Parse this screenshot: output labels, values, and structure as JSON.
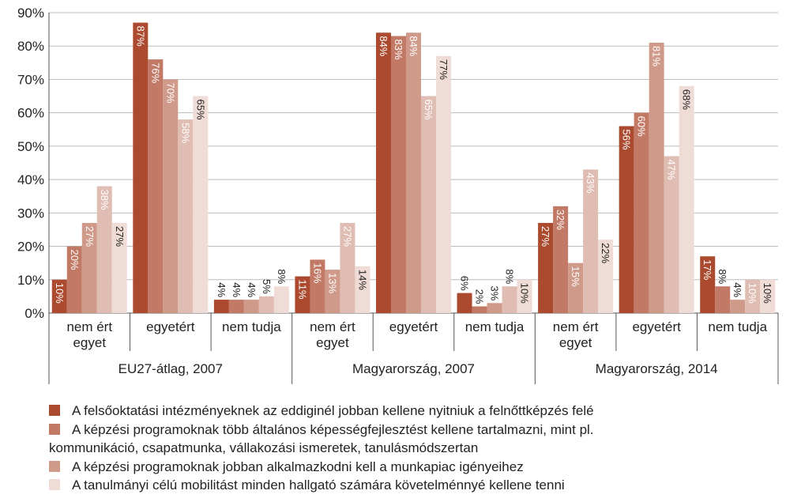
{
  "chart_data": {
    "type": "bar",
    "groups": [
      "EU27-átlag, 2007",
      "Magyarország, 2007",
      "Magyarország, 2014"
    ],
    "categories": [
      "nem ért egyet",
      "egyetért",
      "nem tudja",
      "nem ért egyet",
      "egyetért",
      "nem tudja",
      "nem ért egyet",
      "egyetért",
      "nem tudja"
    ],
    "series": [
      {
        "name": "A felsőoktatási intézményeknek az eddiginél jobban kellene nyitniuk a felnőttképzés felé",
        "color": "#ab4a2e",
        "values": [
          10,
          87,
          4,
          11,
          84,
          6,
          27,
          56,
          17
        ],
        "value_labels": [
          "10%",
          "87%",
          "4%",
          "11%",
          "84%",
          "6%",
          "27%",
          "56%",
          "17%"
        ]
      },
      {
        "name": "A képzési programoknak több általános képességfejlesztést kellene tartalmazni, mint pl. kommunikáció, csapatmunka, vállakozási ismeretek, tanulásmódszertan",
        "color": "#c27a66",
        "values": [
          20,
          76,
          4,
          16,
          83,
          2,
          32,
          60,
          8
        ],
        "value_labels": [
          "20%",
          "76%",
          "4%",
          "16%",
          "83%",
          "2%",
          "32%",
          "60%",
          "8%"
        ]
      },
      {
        "name": "A képzési programoknak jobban alkalmazkodni kell a munkapiac igényeihez",
        "color": "#d09a8b",
        "values": [
          27,
          70,
          4,
          13,
          84,
          3,
          15,
          81,
          4
        ],
        "value_labels": [
          "27%",
          "70%",
          "4%",
          "13%",
          "84%",
          "3%",
          "15%",
          "81%",
          "4%"
        ]
      },
      {
        "name": null,
        "color": "#e0bdb3",
        "values": [
          38,
          58,
          5,
          27,
          65,
          8,
          43,
          47,
          10
        ],
        "value_labels": [
          "38%",
          "58%",
          "5%",
          "27%",
          "65%",
          "8%",
          "43%",
          "47%",
          "10%"
        ]
      },
      {
        "name": "A tanulmányi célú mobilitást minden hallgató számára követelménnyé kellene tenni",
        "color": "#f0dcd6",
        "values": [
          27,
          65,
          8,
          14,
          77,
          10,
          22,
          68,
          10
        ],
        "value_labels": [
          "27%",
          "65%",
          "8%",
          "14%",
          "77%",
          "10%",
          "22%",
          "68%",
          "10%"
        ]
      }
    ],
    "ylim": [
      0,
      90
    ],
    "yticks": [
      {
        "value": 0,
        "label": "0%"
      },
      {
        "value": 10,
        "label": "10%"
      },
      {
        "value": 20,
        "label": "20%"
      },
      {
        "value": 30,
        "label": "30%"
      },
      {
        "value": 40,
        "label": "40%"
      },
      {
        "value": 50,
        "label": "50%"
      },
      {
        "value": 60,
        "label": "60%"
      },
      {
        "value": 70,
        "label": "70%"
      },
      {
        "value": 80,
        "label": "80%"
      },
      {
        "value": 90,
        "label": "90%"
      }
    ],
    "grid": true
  }
}
